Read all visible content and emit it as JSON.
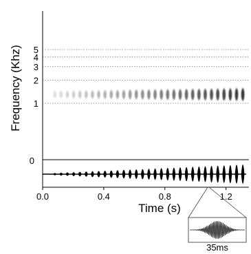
{
  "chart_data": {
    "type": "spectrogram_waveform",
    "title": "",
    "spectrogram": {
      "ylabel": "Frequency (Khz)",
      "y_scale": "log",
      "y_ticks": [
        "5",
        "4",
        "3",
        "2",
        "1"
      ],
      "y_tick_values": [
        5,
        4,
        3,
        2,
        1
      ],
      "grid": "horizontal dotted",
      "band_center_khz": 1.3,
      "pulses": {
        "count": 31,
        "start_s": 0.08,
        "end_s": 1.31,
        "intensity_start": 0.15,
        "intensity_end": 0.95
      }
    },
    "waveform": {
      "y_ticks": [
        "0"
      ],
      "pulses": 31,
      "amplitude_start": 0.12,
      "amplitude_end": 1.0
    },
    "xlabel": "Time (s)",
    "x_ticks": [
      "0.0",
      "0.4",
      "0.8",
      "1.2"
    ],
    "x_tick_values": [
      0.0,
      0.4,
      0.8,
      1.2
    ],
    "xlim": [
      0.0,
      1.35
    ],
    "inset": {
      "label": "35ms",
      "duration_ms": 35,
      "source_time_s": 1.08
    }
  }
}
